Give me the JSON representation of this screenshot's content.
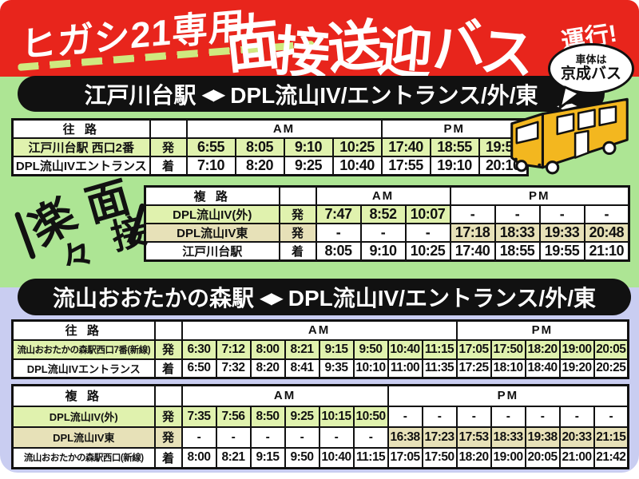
{
  "colors": {
    "header_red": "#e8251c",
    "dash_green": "#cfe97f",
    "bg_green": "#ade594",
    "bg_lavender": "#c9cdf1",
    "banner_black": "#111111",
    "cell_green": "#e0f2ae",
    "cell_beige": "#e7e1b8",
    "bus_yellow": "#f3b71f",
    "text_white": "#ffffff",
    "text_black": "#111111"
  },
  "header": {
    "badge": "ヒガシ21専用!",
    "title": "面接送迎バス",
    "suffix": "運行!",
    "bubble": {
      "line1": "車体は",
      "line2": "京成バス"
    }
  },
  "decoration": {
    "char1": "楽",
    "char2": "々",
    "char3": "面",
    "char4": "接"
  },
  "sections": [
    {
      "banner": {
        "left": "江戸川台駅",
        "arrows": "◀▶",
        "right": "DPL流山IV/エントランス/外/東"
      }
    },
    {
      "banner": {
        "left": "流山おおたかの森駅",
        "arrows": "◀▶",
        "right": "DPL流山IV/エントランス/外/東"
      }
    }
  ],
  "tables": [
    {
      "direction_label": "往 路",
      "am_label": "AM",
      "pm_label": "PM",
      "am_count": 4,
      "rows": [
        {
          "station": "江戸川台駅 西口2番",
          "mark": "発",
          "color": "green",
          "times": [
            "6:55",
            "8:05",
            "9:10",
            "10:25",
            "17:40",
            "18:55",
            "19:55"
          ]
        },
        {
          "station": "DPL流山IVエントランス",
          "mark": "着",
          "color": "white",
          "times": [
            "7:10",
            "8:20",
            "9:25",
            "10:40",
            "17:55",
            "19:10",
            "20:10"
          ]
        }
      ]
    },
    {
      "direction_label": "複 路",
      "am_label": "AM",
      "pm_label": "PM",
      "am_count": 3,
      "rows": [
        {
          "station": "DPL流山IV(外)",
          "mark": "発",
          "color": "green",
          "times": [
            "7:47",
            "8:52",
            "10:07",
            "-",
            "-",
            "-",
            "-"
          ]
        },
        {
          "station": "DPL流山IV東",
          "mark": "発",
          "color": "beige",
          "times": [
            "-",
            "-",
            "-",
            "17:18",
            "18:33",
            "19:33",
            "20:48"
          ]
        },
        {
          "station": "江戸川台駅",
          "mark": "着",
          "color": "white",
          "times": [
            "8:05",
            "9:10",
            "10:25",
            "17:40",
            "18:55",
            "19:55",
            "21:10"
          ]
        }
      ]
    },
    {
      "direction_label": "往 路",
      "am_label": "AM",
      "pm_label": "PM",
      "am_count": 8,
      "rows": [
        {
          "station": "流山おおたかの森駅西口7番(新線)",
          "mark": "発",
          "color": "green",
          "times": [
            "6:30",
            "7:12",
            "8:00",
            "8:21",
            "9:15",
            "9:50",
            "10:40",
            "11:15",
            "17:05",
            "17:50",
            "18:20",
            "19:00",
            "20:05"
          ]
        },
        {
          "station": "DPL流山IVエントランス",
          "mark": "着",
          "color": "white",
          "times": [
            "6:50",
            "7:32",
            "8:20",
            "8:41",
            "9:35",
            "10:10",
            "11:00",
            "11:35",
            "17:25",
            "18:10",
            "18:40",
            "19:20",
            "20:25"
          ]
        }
      ]
    },
    {
      "direction_label": "複 路",
      "am_label": "AM",
      "pm_label": "PM",
      "am_count": 6,
      "rows": [
        {
          "station": "DPL流山IV(外)",
          "mark": "発",
          "color": "green",
          "times": [
            "7:35",
            "7:56",
            "8:50",
            "9:25",
            "10:15",
            "10:50",
            "-",
            "-",
            "-",
            "-",
            "-",
            "-",
            "-"
          ]
        },
        {
          "station": "DPL流山IV東",
          "mark": "発",
          "color": "beige",
          "times": [
            "-",
            "-",
            "-",
            "-",
            "-",
            "-",
            "16:38",
            "17:23",
            "17:53",
            "18:33",
            "19:38",
            "20:33",
            "21:15"
          ]
        },
        {
          "station": "流山おおたかの森駅西口(新線)",
          "mark": "着",
          "color": "white",
          "times": [
            "8:00",
            "8:21",
            "9:15",
            "9:50",
            "10:40",
            "11:15",
            "17:05",
            "17:50",
            "18:20",
            "19:00",
            "20:05",
            "21:00",
            "21:42"
          ]
        }
      ]
    }
  ]
}
